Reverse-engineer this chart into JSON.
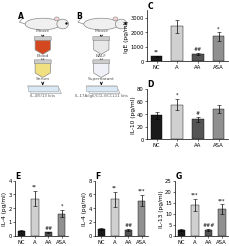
{
  "panel_C": {
    "title": "C",
    "ylabel": "IgE (pg/ml)",
    "categories": [
      "NC",
      "A",
      "AA",
      "ASA"
    ],
    "values": [
      320,
      2400,
      480,
      1700
    ],
    "errors": [
      60,
      450,
      80,
      280
    ],
    "colors": [
      "#1a1a1a",
      "#d0d0d0",
      "#555555",
      "#909090"
    ],
    "ylim": [
      0,
      3500
    ],
    "yticks": [
      0,
      1000,
      2000,
      3000
    ],
    "sig_above": [
      "**",
      "",
      "##",
      "*"
    ]
  },
  "panel_D": {
    "title": "D",
    "ylabel": "IL-10 (pg/ml)",
    "categories": [
      "NC",
      "A",
      "AA",
      "ASA"
    ],
    "values": [
      38,
      55,
      32,
      48
    ],
    "errors": [
      5,
      9,
      4,
      6
    ],
    "colors": [
      "#1a1a1a",
      "#d0d0d0",
      "#555555",
      "#909090"
    ],
    "ylim": [
      0,
      80
    ],
    "yticks": [
      0,
      20,
      40,
      60,
      80
    ],
    "sig_above": [
      "",
      "*",
      "#",
      ""
    ]
  },
  "panel_E": {
    "title": "E",
    "ylabel": "IL-4 (pg/ml)",
    "categories": [
      "NC",
      "A",
      "AA",
      "ASA"
    ],
    "values": [
      0.35,
      2.7,
      0.25,
      1.6
    ],
    "errors": [
      0.05,
      0.55,
      0.04,
      0.28
    ],
    "colors": [
      "#1a1a1a",
      "#d0d0d0",
      "#555555",
      "#909090"
    ],
    "ylim": [
      0,
      4
    ],
    "yticks": [
      0,
      1,
      2,
      3,
      4
    ],
    "sig_above": [
      "",
      "**",
      "##",
      "*"
    ]
  },
  "panel_F": {
    "title": "F",
    "ylabel": "IL-4 (pg/ml)",
    "categories": [
      "NC",
      "A",
      "AA",
      "ASA"
    ],
    "values": [
      0.9,
      5.3,
      0.8,
      5.1
    ],
    "errors": [
      0.15,
      1.1,
      0.15,
      0.85
    ],
    "colors": [
      "#1a1a1a",
      "#d0d0d0",
      "#555555",
      "#909090"
    ],
    "ylim": [
      0,
      8
    ],
    "yticks": [
      0,
      2,
      4,
      6,
      8
    ],
    "sig_above": [
      "",
      "**",
      "##",
      "***"
    ]
  },
  "panel_G": {
    "title": "G",
    "ylabel": "IL-13 (pg/ml)",
    "categories": [
      "NC",
      "A",
      "AA",
      "ASA"
    ],
    "values": [
      2.5,
      14,
      2.5,
      12
    ],
    "errors": [
      0.4,
      2.8,
      0.4,
      2.2
    ],
    "colors": [
      "#1a1a1a",
      "#d0d0d0",
      "#555555",
      "#909090"
    ],
    "ylim": [
      0,
      25
    ],
    "yticks": [
      0,
      5,
      10,
      15,
      20,
      25
    ],
    "sig_above": [
      "",
      "***",
      "###",
      "***"
    ]
  },
  "bg_color": "#ffffff",
  "bar_width": 0.55,
  "fontsize_title": 5.5,
  "fontsize_tick": 3.8,
  "fontsize_label": 4.2,
  "fontsize_sig": 3.5
}
